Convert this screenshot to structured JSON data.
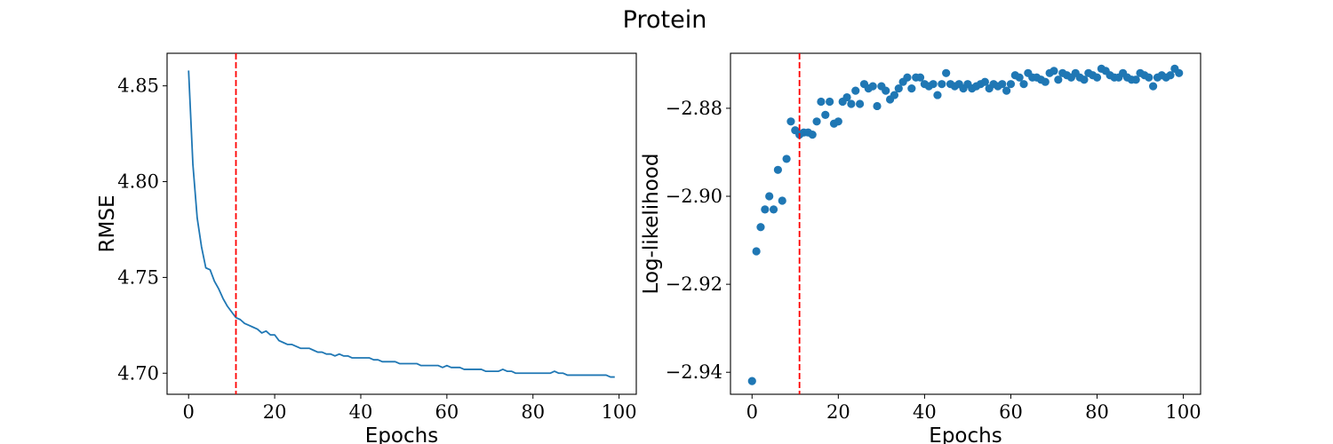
{
  "figure": {
    "title": "Protein"
  },
  "colors": {
    "series": "#1f77b4",
    "marker_line": "#ff0000",
    "axes": "#000000"
  },
  "chart_data": [
    {
      "type": "line",
      "xlabel": "Epochs",
      "ylabel": "RMSE",
      "xlim": [
        -5,
        104
      ],
      "ylim": [
        4.689,
        4.867
      ],
      "xticks": [
        0,
        20,
        40,
        60,
        80,
        100
      ],
      "xtick_labels": [
        "0",
        "20",
        "40",
        "60",
        "80",
        "100"
      ],
      "yticks": [
        4.7,
        4.75,
        4.8,
        4.85
      ],
      "ytick_labels": [
        "4.70",
        "4.75",
        "4.80",
        "4.85"
      ],
      "vline_x": 11,
      "series": [
        {
          "x": [
            0,
            1,
            2,
            3,
            4,
            5,
            6,
            7,
            8,
            9,
            10,
            11,
            12,
            13,
            14,
            15,
            16,
            17,
            18,
            19,
            20,
            21,
            22,
            23,
            24,
            25,
            26,
            27,
            28,
            29,
            30,
            31,
            32,
            33,
            34,
            35,
            36,
            37,
            38,
            39,
            40,
            41,
            42,
            43,
            44,
            45,
            46,
            47,
            48,
            49,
            50,
            51,
            52,
            53,
            54,
            55,
            56,
            57,
            58,
            59,
            60,
            61,
            62,
            63,
            64,
            65,
            66,
            67,
            68,
            69,
            70,
            71,
            72,
            73,
            74,
            75,
            76,
            77,
            78,
            79,
            80,
            81,
            82,
            83,
            84,
            85,
            86,
            87,
            88,
            89,
            90,
            91,
            92,
            93,
            94,
            95,
            96,
            97,
            98,
            99
          ],
          "y": [
            4.858,
            4.809,
            4.781,
            4.766,
            4.755,
            4.754,
            4.748,
            4.744,
            4.739,
            4.735,
            4.732,
            4.729,
            4.728,
            4.726,
            4.725,
            4.724,
            4.723,
            4.721,
            4.722,
            4.72,
            4.72,
            4.717,
            4.716,
            4.715,
            4.715,
            4.714,
            4.713,
            4.713,
            4.713,
            4.712,
            4.711,
            4.711,
            4.71,
            4.71,
            4.709,
            4.71,
            4.709,
            4.709,
            4.708,
            4.708,
            4.708,
            4.708,
            4.708,
            4.707,
            4.707,
            4.706,
            4.706,
            4.706,
            4.706,
            4.705,
            4.705,
            4.705,
            4.705,
            4.705,
            4.704,
            4.704,
            4.704,
            4.704,
            4.704,
            4.703,
            4.704,
            4.703,
            4.703,
            4.703,
            4.702,
            4.702,
            4.702,
            4.702,
            4.702,
            4.701,
            4.701,
            4.701,
            4.701,
            4.702,
            4.701,
            4.701,
            4.7,
            4.7,
            4.7,
            4.7,
            4.7,
            4.7,
            4.7,
            4.7,
            4.7,
            4.701,
            4.7,
            4.7,
            4.699,
            4.699,
            4.699,
            4.699,
            4.699,
            4.699,
            4.699,
            4.699,
            4.699,
            4.699,
            4.698,
            4.698
          ]
        }
      ]
    },
    {
      "type": "scatter",
      "xlabel": "Epochs",
      "ylabel": "Log-likelihood",
      "xlim": [
        -5,
        104
      ],
      "ylim": [
        -2.945,
        -2.8675
      ],
      "xticks": [
        0,
        20,
        40,
        60,
        80,
        100
      ],
      "xtick_labels": [
        "0",
        "20",
        "40",
        "60",
        "80",
        "100"
      ],
      "yticks": [
        -2.94,
        -2.92,
        -2.9,
        -2.88
      ],
      "ytick_labels": [
        "−2.94",
        "−2.92",
        "−2.90",
        "−2.88"
      ],
      "vline_x": 11,
      "series": [
        {
          "x": [
            0,
            1,
            2,
            3,
            4,
            5,
            6,
            7,
            8,
            9,
            10,
            11,
            12,
            13,
            14,
            15,
            16,
            17,
            18,
            19,
            20,
            21,
            22,
            23,
            24,
            25,
            26,
            27,
            28,
            29,
            30,
            31,
            32,
            33,
            34,
            35,
            36,
            37,
            38,
            39,
            40,
            41,
            42,
            43,
            44,
            45,
            46,
            47,
            48,
            49,
            50,
            51,
            52,
            53,
            54,
            55,
            56,
            57,
            58,
            59,
            60,
            61,
            62,
            63,
            64,
            65,
            66,
            67,
            68,
            69,
            70,
            71,
            72,
            73,
            74,
            75,
            76,
            77,
            78,
            79,
            80,
            81,
            82,
            83,
            84,
            85,
            86,
            87,
            88,
            89,
            90,
            91,
            92,
            93,
            94,
            95,
            96,
            97,
            98,
            99
          ],
          "y": [
            -2.942,
            -2.9125,
            -2.907,
            -2.903,
            -2.9,
            -2.903,
            -2.894,
            -2.901,
            -2.8915,
            -2.883,
            -2.885,
            -2.886,
            -2.8855,
            -2.8855,
            -2.886,
            -2.883,
            -2.8785,
            -2.8815,
            -2.8785,
            -2.8835,
            -2.883,
            -2.8785,
            -2.8775,
            -2.879,
            -2.876,
            -2.879,
            -2.8745,
            -2.8755,
            -2.875,
            -2.8795,
            -2.875,
            -2.876,
            -2.878,
            -2.877,
            -2.8755,
            -2.874,
            -2.873,
            -2.8755,
            -2.873,
            -2.873,
            -2.8745,
            -2.875,
            -2.8745,
            -2.877,
            -2.8745,
            -2.872,
            -2.8745,
            -2.875,
            -2.8745,
            -2.8755,
            -2.8745,
            -2.8755,
            -2.875,
            -2.8745,
            -2.874,
            -2.8755,
            -2.8745,
            -2.875,
            -2.8745,
            -2.876,
            -2.8745,
            -2.8725,
            -2.873,
            -2.8745,
            -2.872,
            -2.873,
            -2.873,
            -2.8735,
            -2.874,
            -2.872,
            -2.8715,
            -2.8735,
            -2.872,
            -2.8725,
            -2.873,
            -2.872,
            -2.873,
            -2.8735,
            -2.872,
            -2.8725,
            -2.873,
            -2.871,
            -2.8715,
            -2.8725,
            -2.873,
            -2.873,
            -2.872,
            -2.873,
            -2.8735,
            -2.8735,
            -2.872,
            -2.8725,
            -2.873,
            -2.875,
            -2.873,
            -2.8725,
            -2.873,
            -2.8725,
            -2.871,
            -2.872
          ]
        }
      ]
    }
  ]
}
